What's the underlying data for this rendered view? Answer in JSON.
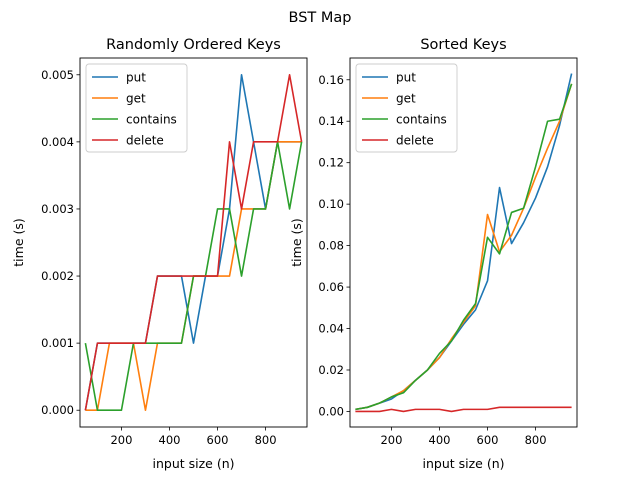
{
  "figure": {
    "title": "BST Map"
  },
  "chart_data": [
    {
      "type": "line",
      "title": "Randomly Ordered Keys",
      "xlabel": "input size (n)",
      "ylabel": "time (s)",
      "xlim": [
        27.5,
        972.5
      ],
      "ylim": [
        -0.00025,
        0.00525
      ],
      "xticks": [
        200,
        400,
        600,
        800
      ],
      "xtick_labels": [
        "200",
        "400",
        "600",
        "800"
      ],
      "yticks": [
        0,
        0.001,
        0.002,
        0.003,
        0.004,
        0.005
      ],
      "ytick_labels": [
        "0.000",
        "0.001",
        "0.002",
        "0.003",
        "0.004",
        "0.005"
      ],
      "grid": false,
      "legend_position": "top-left",
      "x": [
        50,
        100,
        150,
        200,
        250,
        300,
        350,
        400,
        450,
        500,
        550,
        600,
        650,
        700,
        750,
        800,
        850,
        900,
        950
      ],
      "series": [
        {
          "name": "put",
          "color": "#1f77b4",
          "values": [
            0,
            0.001,
            0.001,
            0.001,
            0.001,
            0.001,
            0.002,
            0.002,
            0.002,
            0.001,
            0.002,
            0.002,
            0.003,
            0.005,
            0.004,
            0.003,
            0.004,
            0.004,
            0.004
          ]
        },
        {
          "name": "get",
          "color": "#ff7f0e",
          "values": [
            0,
            0,
            0.001,
            0.001,
            0.001,
            0,
            0.001,
            0.001,
            0.001,
            0.002,
            0.002,
            0.002,
            0.002,
            0.003,
            0.003,
            0.003,
            0.004,
            0.004,
            0.004
          ]
        },
        {
          "name": "contains",
          "color": "#2ca02c",
          "values": [
            0.001,
            0,
            0,
            0,
            0.001,
            0.001,
            0.001,
            0.001,
            0.001,
            0.002,
            0.002,
            0.003,
            0.003,
            0.002,
            0.003,
            0.003,
            0.004,
            0.003,
            0.004
          ]
        },
        {
          "name": "delete",
          "color": "#d62728",
          "values": [
            0,
            0.001,
            0.001,
            0.001,
            0.001,
            0.001,
            0.002,
            0.002,
            0.002,
            0.002,
            0.002,
            0.002,
            0.004,
            0.003,
            0.004,
            0.004,
            0.004,
            0.005,
            0.004
          ]
        }
      ]
    },
    {
      "type": "line",
      "title": "Sorted Keys",
      "xlabel": "input size (n)",
      "ylabel": "time (s)",
      "xlim": [
        27.5,
        972.5
      ],
      "ylim": [
        -0.0075,
        0.1705
      ],
      "xticks": [
        200,
        400,
        600,
        800
      ],
      "xtick_labels": [
        "200",
        "400",
        "600",
        "800"
      ],
      "yticks": [
        0,
        0.02,
        0.04,
        0.06,
        0.08,
        0.1,
        0.12,
        0.14,
        0.16
      ],
      "ytick_labels": [
        "0.00",
        "0.02",
        "0.04",
        "0.06",
        "0.08",
        "0.10",
        "0.12",
        "0.14",
        "0.16"
      ],
      "grid": false,
      "legend_position": "top-left",
      "x": [
        50,
        100,
        150,
        200,
        250,
        300,
        350,
        400,
        450,
        500,
        550,
        600,
        650,
        700,
        750,
        800,
        850,
        900,
        950
      ],
      "series": [
        {
          "name": "put",
          "color": "#1f77b4",
          "values": [
            0.001,
            0.002,
            0.004,
            0.006,
            0.01,
            0.015,
            0.02,
            0.026,
            0.034,
            0.042,
            0.049,
            0.063,
            0.108,
            0.081,
            0.091,
            0.103,
            0.118,
            0.138,
            0.163
          ]
        },
        {
          "name": "get",
          "color": "#ff7f0e",
          "values": [
            0.001,
            0.002,
            0.004,
            0.007,
            0.01,
            0.015,
            0.02,
            0.026,
            0.035,
            0.043,
            0.051,
            0.095,
            0.077,
            0.085,
            0.098,
            0.113,
            0.127,
            0.14,
            0.158
          ]
        },
        {
          "name": "contains",
          "color": "#2ca02c",
          "values": [
            0.001,
            0.002,
            0.004,
            0.007,
            0.009,
            0.015,
            0.02,
            0.028,
            0.034,
            0.044,
            0.052,
            0.084,
            0.076,
            0.096,
            0.098,
            0.118,
            0.14,
            0.141,
            0.158
          ]
        },
        {
          "name": "delete",
          "color": "#d62728",
          "values": [
            0,
            0,
            0,
            0.001,
            0,
            0.001,
            0.001,
            0.001,
            0,
            0.001,
            0.001,
            0.001,
            0.002,
            0.002,
            0.002,
            0.002,
            0.002,
            0.002,
            0.002
          ]
        }
      ]
    }
  ]
}
